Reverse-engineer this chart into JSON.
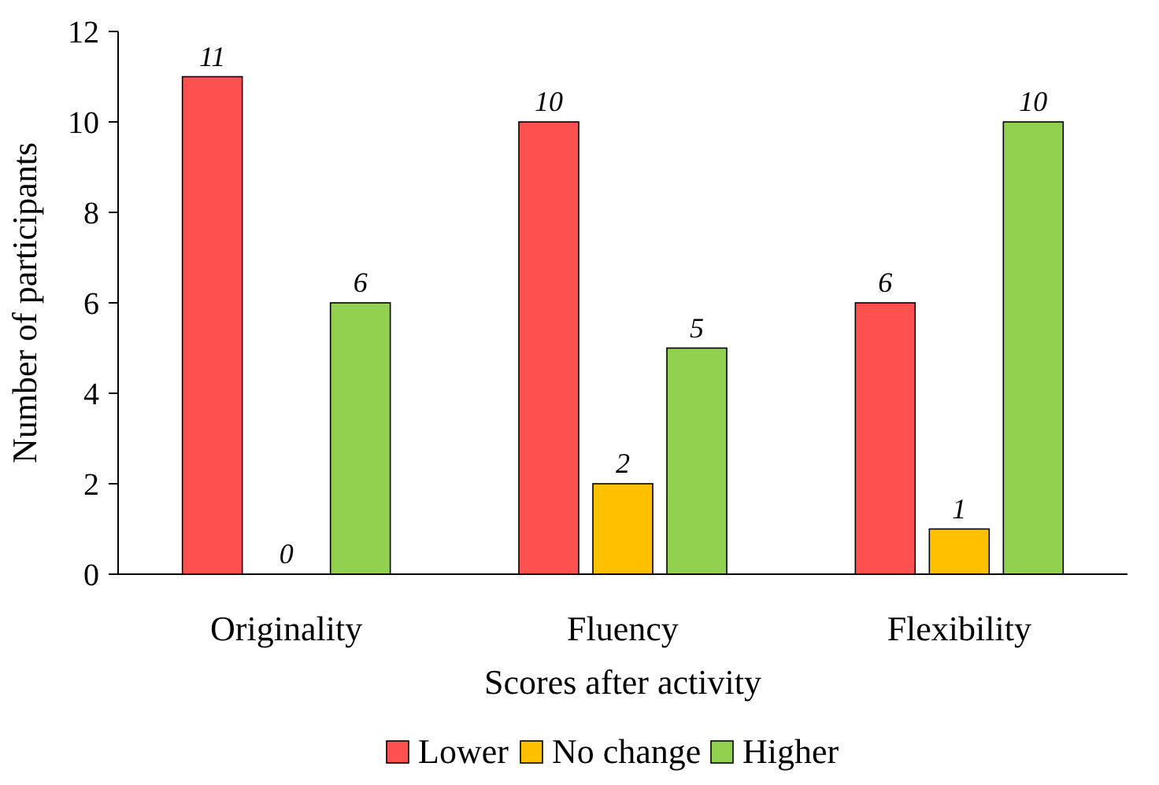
{
  "chart_data": {
    "type": "bar",
    "xlabel": "Scores after activity",
    "ylabel": "Number of participants",
    "categories": [
      "Originality",
      "Fluency",
      "Flexibility"
    ],
    "series": [
      {
        "name": "Lower",
        "color": "#ff5050",
        "values": [
          11,
          10,
          6
        ]
      },
      {
        "name": "No change",
        "color": "#ffc000",
        "values": [
          0,
          2,
          1
        ]
      },
      {
        "name": "Higher",
        "color": "#92d050",
        "values": [
          6,
          5,
          10
        ]
      }
    ],
    "ylim": [
      0,
      12
    ],
    "yticks": [
      0,
      2,
      4,
      6,
      8,
      10,
      12
    ],
    "grid": false,
    "legend": "bottom",
    "data_labels": true
  }
}
